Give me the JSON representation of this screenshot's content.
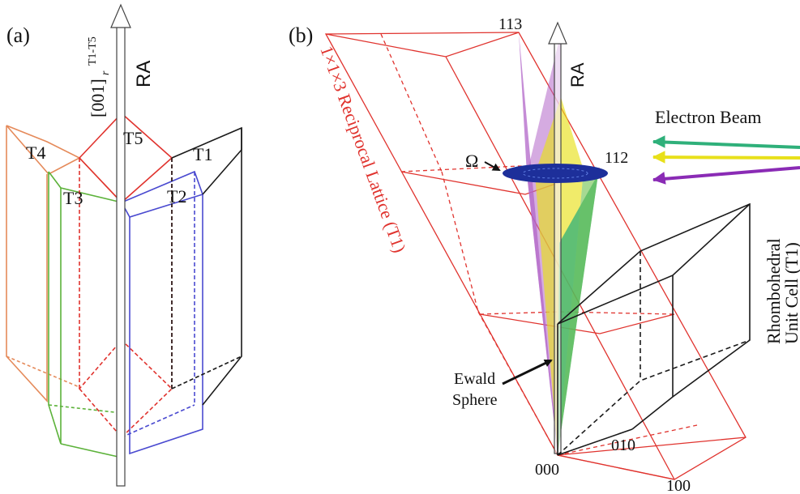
{
  "panel_a": {
    "label": "(a)",
    "axis_label_main": "[001]",
    "axis_label_sub": "r",
    "axis_label_sup": "T1-T5",
    "ra_label": "RA",
    "twins": [
      {
        "name": "T1",
        "color": "#1a1a1a"
      },
      {
        "name": "T2",
        "color": "#4a4ad0"
      },
      {
        "name": "T3",
        "color": "#5cb23a"
      },
      {
        "name": "T4",
        "color": "#e58a5a"
      },
      {
        "name": "T5",
        "color": "#e0332e"
      }
    ]
  },
  "panel_b": {
    "label": "(b)",
    "lattice_label": "1×1×3 Reciprocal Lattice (T1)",
    "ra_label": "RA",
    "omega_label": "Ω",
    "beam_label": "Electron Beam",
    "unit_cell_line1": "Rhombohedral",
    "unit_cell_line2": "Unit Cell (T1)",
    "ewald_line1": "Ewald",
    "ewald_line2": "Sphere",
    "nodes": {
      "n113": "113",
      "n112": "112",
      "n000": "000",
      "n010": "010",
      "n100": "100"
    },
    "colors": {
      "lattice": "#e0332e",
      "beam_green": "#2fb07a",
      "beam_yellow": "#e8e01a",
      "beam_purple": "#8a2bb5",
      "omega_disk": "#1d2f9a"
    }
  }
}
